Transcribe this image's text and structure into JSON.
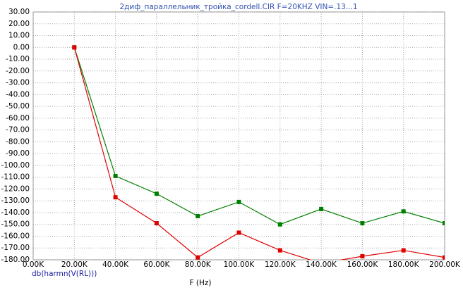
{
  "chart_data": {
    "type": "line",
    "title": "2диф_параллельник_тройка_cordell.CIR F=20KHZ VIN=.13...1",
    "xlabel": "F (Hz)",
    "ylabel": "db(harmn(V(RL)))",
    "x": [
      20000,
      40000,
      60000,
      80000,
      100000,
      120000,
      140000,
      160000,
      180000,
      200000
    ],
    "series": [
      {
        "color": "#008000",
        "values": [
          0,
          -109,
          -124,
          -143,
          -131,
          -150,
          -137,
          -149,
          -139,
          -149
        ]
      },
      {
        "color": "#e00000",
        "values": [
          0,
          -127,
          -149,
          -178,
          -157,
          -172,
          -183,
          -177,
          -172,
          -178
        ]
      }
    ],
    "xlim": [
      0,
      200000
    ],
    "ylim": [
      -180,
      30
    ],
    "xticks": [
      {
        "value": 0,
        "label": "0.00K"
      },
      {
        "value": 20000,
        "label": "20.00K"
      },
      {
        "value": 40000,
        "label": "40.00K"
      },
      {
        "value": 60000,
        "label": "60.00K"
      },
      {
        "value": 80000,
        "label": "80.00K"
      },
      {
        "value": 100000,
        "label": "100.00K"
      },
      {
        "value": 120000,
        "label": "120.00K"
      },
      {
        "value": 140000,
        "label": "140.00K"
      },
      {
        "value": 160000,
        "label": "160.00K"
      },
      {
        "value": 180000,
        "label": "180.00K"
      },
      {
        "value": 200000,
        "label": "200.00K"
      }
    ],
    "yticks": [
      {
        "value": 30,
        "label": "30.00"
      },
      {
        "value": 20,
        "label": "20.00"
      },
      {
        "value": 10,
        "label": "10.00"
      },
      {
        "value": 0,
        "label": "0.00"
      },
      {
        "value": -10,
        "label": "-10.00"
      },
      {
        "value": -20,
        "label": "-20.00"
      },
      {
        "value": -30,
        "label": "-30.00"
      },
      {
        "value": -40,
        "label": "-40.00"
      },
      {
        "value": -50,
        "label": "-50.00"
      },
      {
        "value": -60,
        "label": "-60.00"
      },
      {
        "value": -70,
        "label": "-70.00"
      },
      {
        "value": -80,
        "label": "-80.00"
      },
      {
        "value": -90,
        "label": "-90.00"
      },
      {
        "value": -100,
        "label": "-100.00"
      },
      {
        "value": -110,
        "label": "-110.00"
      },
      {
        "value": -120,
        "label": "-120.00"
      },
      {
        "value": -130,
        "label": "-130.00"
      },
      {
        "value": -140,
        "label": "-140.00"
      },
      {
        "value": -150,
        "label": "-150.00"
      },
      {
        "value": -160,
        "label": "-160.00"
      },
      {
        "value": -170,
        "label": "-170.00"
      },
      {
        "value": -180,
        "label": "-180.00"
      }
    ],
    "grid": true
  }
}
